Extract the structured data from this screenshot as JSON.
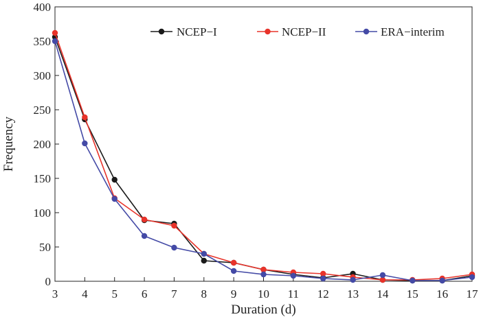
{
  "chart_data": {
    "type": "line",
    "xlabel": "Duration (d)",
    "ylabel": "Frequency",
    "xlim": [
      3,
      17
    ],
    "ylim": [
      0,
      400
    ],
    "x_ticks": [
      3,
      4,
      5,
      6,
      7,
      8,
      9,
      10,
      11,
      12,
      13,
      14,
      15,
      16,
      17
    ],
    "y_ticks": [
      0,
      50,
      100,
      150,
      200,
      250,
      300,
      350,
      400
    ],
    "legend_position": "top-right",
    "grid": false,
    "x": [
      3,
      4,
      5,
      6,
      7,
      8,
      9,
      10,
      11,
      12,
      13,
      14,
      15,
      16,
      17
    ],
    "series": [
      {
        "name": "NCEP−I",
        "color": "#1a1a1a",
        "values": [
          356,
          236,
          148,
          89,
          84,
          30,
          27,
          17,
          10,
          5,
          11,
          2,
          1,
          1,
          8
        ]
      },
      {
        "name": "NCEP−II",
        "color": "#e8332a",
        "values": [
          362,
          239,
          121,
          90,
          81,
          40,
          27,
          17,
          13,
          11,
          6,
          2,
          2,
          4,
          10
        ]
      },
      {
        "name": "ERA−interim",
        "color": "#444aa6",
        "values": [
          350,
          201,
          120,
          66,
          49,
          40,
          15,
          10,
          8,
          4,
          2,
          9,
          1,
          1,
          6
        ]
      }
    ]
  }
}
